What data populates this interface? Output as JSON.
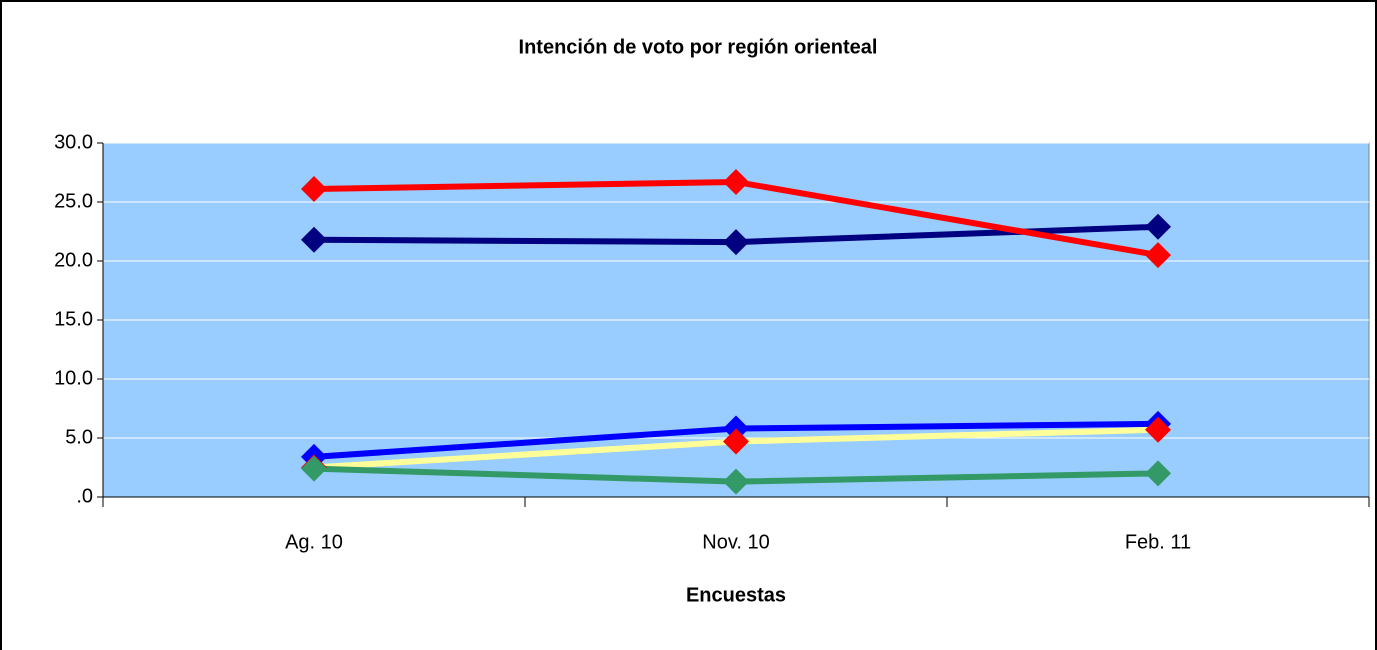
{
  "chart_data": {
    "type": "line",
    "title": "Intención de voto por región orienteal",
    "x_label": "Encuestas",
    "categories": [
      "Ag. 10",
      "Nov. 10",
      "Feb. 11"
    ],
    "series": [
      {
        "color": "#000080",
        "marker_color": "#000080",
        "values": [
          21.8,
          21.6,
          22.9
        ]
      },
      {
        "color": "#ff0000",
        "marker_color": "#ff0000",
        "values": [
          26.1,
          26.7,
          20.5
        ]
      },
      {
        "color": "#0000ff",
        "marker_color": "#0000ff",
        "values": [
          3.4,
          5.8,
          6.2
        ]
      },
      {
        "color": "#ffff99",
        "marker_color": "#ff0000",
        "values": [
          2.5,
          4.7,
          5.7
        ]
      },
      {
        "color": "#339966",
        "marker_color": "#339966",
        "values": [
          2.4,
          1.3,
          2.0
        ]
      }
    ],
    "ylim": [
      0,
      30
    ],
    "yticks": [
      {
        "value": 0,
        "label": ".0"
      },
      {
        "value": 5,
        "label": "5.0"
      },
      {
        "value": 10,
        "label": "10.0"
      },
      {
        "value": 15,
        "label": "15.0"
      },
      {
        "value": 20,
        "label": "20.0"
      },
      {
        "value": 25,
        "label": "25.0"
      },
      {
        "value": 30,
        "label": "30.0"
      }
    ],
    "grid": true,
    "plot_background": "#99ccff"
  }
}
